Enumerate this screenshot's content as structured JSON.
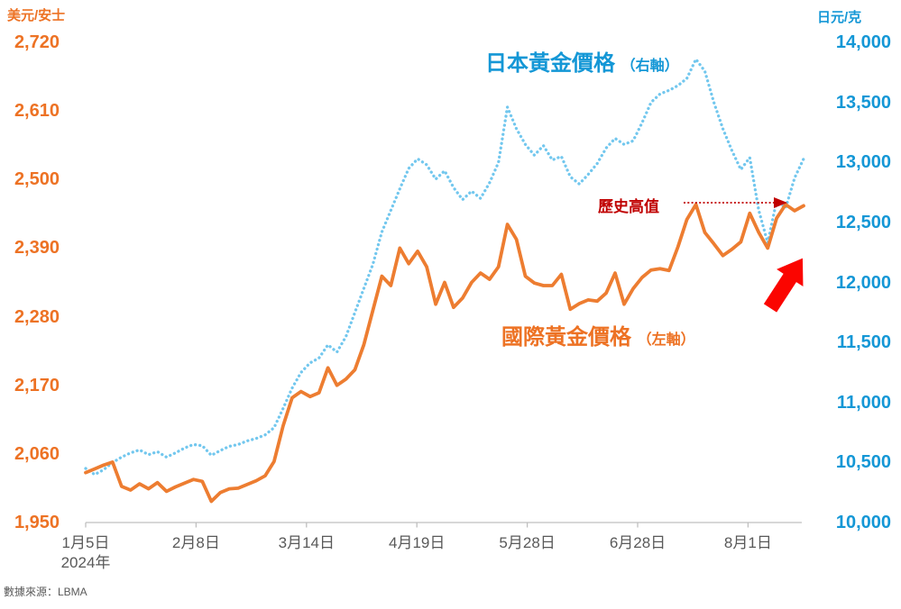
{
  "axes": {
    "left_unit": "美元/安士",
    "right_unit": "日元/克",
    "left_ticks": [
      "2,720",
      "2,610",
      "2,500",
      "2,390",
      "2,280",
      "2,170",
      "2,060",
      "1,950"
    ],
    "right_ticks": [
      "14,000",
      "13,500",
      "13,000",
      "12,500",
      "12,000",
      "11,500",
      "11,000",
      "10,500",
      "10,000"
    ],
    "x_ticks": [
      "1月5日",
      "2月8日",
      "3月14日",
      "4月19日",
      "5月28日",
      "6月28日",
      "8月1日"
    ],
    "x_year": "2024年"
  },
  "labels": {
    "japan_series": "日本黃金價格",
    "japan_axis_note": "（右軸）",
    "intl_series": "國際黃金價格",
    "intl_axis_note": "（左軸）",
    "historic_high": "歷史高值",
    "source": "數據來源：LBMA"
  },
  "colors": {
    "intl_line": "#ED7D31",
    "intl_text": "#ED7224",
    "japan_line": "#72C7EE",
    "japan_text": "#1497D6",
    "annotation_red": "#C00000",
    "arrow_red": "#FB0500",
    "axis_line": "#BFBFBF",
    "x_label_gray": "#595959"
  },
  "chart_data": {
    "type": "line",
    "title": "",
    "x_ticks": [
      "1月5日",
      "2月8日",
      "3月14日",
      "4月19日",
      "5月28日",
      "6月28日",
      "8月1日"
    ],
    "x_start_year": "2024年",
    "left_axis": {
      "unit": "美元/安士",
      "min": 1950,
      "max": 2720,
      "tick_step": 110
    },
    "right_axis": {
      "unit": "日元/克",
      "min": 10000,
      "max": 14000,
      "tick_step": 500
    },
    "legend_position": "inline-annotations",
    "grid": false,
    "annotations": [
      {
        "text": "歷史高值",
        "type": "dashed-arrow",
        "color": "#C00000",
        "points_to": "2024-08 historic high of international gold price"
      },
      {
        "type": "block-arrow-up",
        "color": "#FB0500",
        "meaning": "surge at end of period"
      }
    ],
    "series": [
      {
        "name": "國際黃金價格",
        "axis": "left",
        "style": "solid",
        "color": "#ED7D31",
        "values": [
          2030,
          2036,
          2042,
          2047,
          2008,
          2002,
          2012,
          2004,
          2014,
          2000,
          2007,
          2013,
          2019,
          2016,
          1984,
          1998,
          2004,
          2005,
          2011,
          2017,
          2025,
          2048,
          2105,
          2150,
          2160,
          2152,
          2158,
          2198,
          2170,
          2180,
          2195,
          2235,
          2290,
          2345,
          2330,
          2390,
          2365,
          2385,
          2360,
          2300,
          2335,
          2295,
          2310,
          2335,
          2350,
          2340,
          2360,
          2428,
          2404,
          2345,
          2334,
          2330,
          2330,
          2348,
          2292,
          2301,
          2307,
          2305,
          2318,
          2350,
          2300,
          2325,
          2343,
          2355,
          2357,
          2354,
          2392,
          2436,
          2460,
          2415,
          2397,
          2378,
          2388,
          2400,
          2446,
          2415,
          2390,
          2438,
          2460,
          2450,
          2458
        ]
      },
      {
        "name": "日本黃金價格",
        "axis": "right",
        "style": "dotted",
        "color": "#72C7EE",
        "values": [
          10450,
          10400,
          10440,
          10500,
          10545,
          10580,
          10605,
          10565,
          10590,
          10545,
          10580,
          10620,
          10650,
          10640,
          10560,
          10600,
          10635,
          10650,
          10680,
          10700,
          10730,
          10790,
          10950,
          11120,
          11250,
          11330,
          11370,
          11480,
          11420,
          11550,
          11750,
          11950,
          12150,
          12420,
          12600,
          12780,
          12950,
          13030,
          12980,
          12860,
          12930,
          12790,
          12690,
          12760,
          12700,
          12830,
          13000,
          13460,
          13280,
          13150,
          13060,
          13140,
          13020,
          13050,
          12880,
          12820,
          12900,
          12990,
          13120,
          13200,
          13150,
          13180,
          13330,
          13500,
          13570,
          13600,
          13640,
          13700,
          13860,
          13760,
          13500,
          13280,
          13100,
          12940,
          13040,
          12600,
          12330,
          12680,
          12620,
          12870,
          13030
        ]
      }
    ]
  }
}
